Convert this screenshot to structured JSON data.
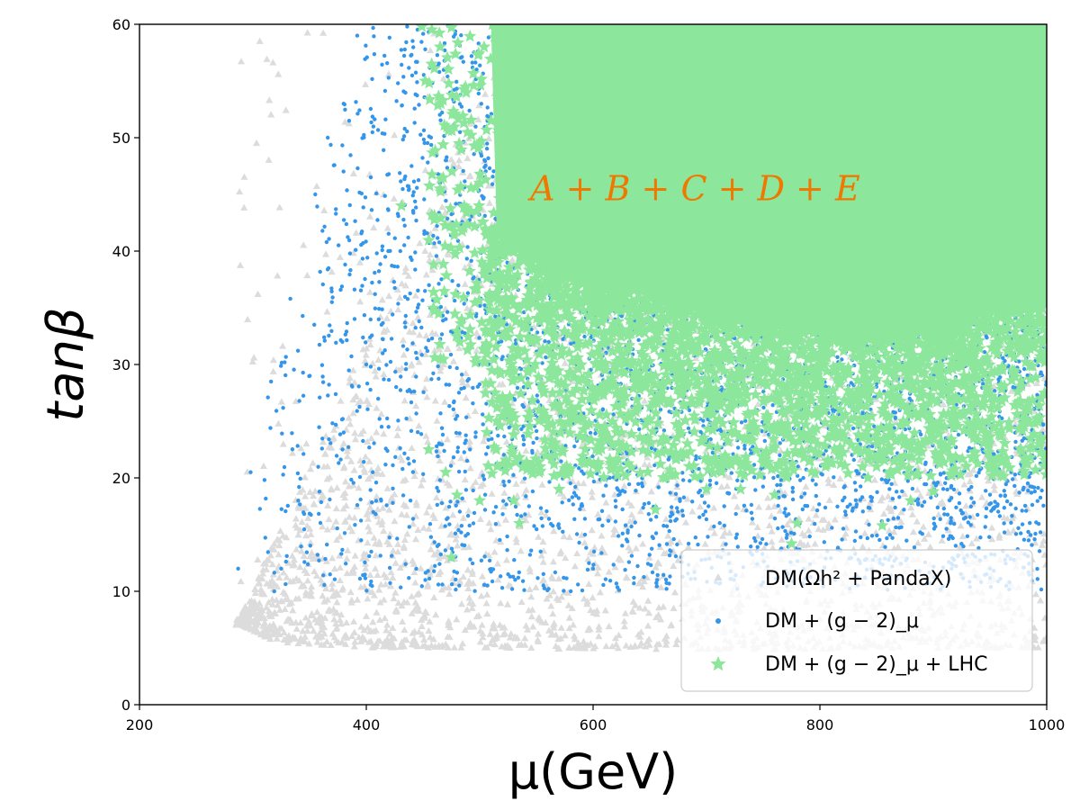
{
  "chart_data": {
    "type": "scatter",
    "xlabel": "μ(GeV)",
    "ylabel": "tanβ",
    "xlim": [
      200,
      1000
    ],
    "ylim": [
      0,
      60
    ],
    "xticks": [
      200,
      400,
      600,
      800,
      1000
    ],
    "yticks": [
      0,
      10,
      20,
      30,
      40,
      50,
      60
    ],
    "grid": false,
    "legend_position": "bottom-right",
    "annotation": {
      "text": "A + B + C + D + E",
      "x": 690,
      "y": 45.5,
      "color": "#f07800"
    },
    "series": [
      {
        "name": "DM(Ωh² + PandaX)",
        "marker": "triangle",
        "color": "#dcdcdc",
        "approx_region": {
          "x_range": [
            285,
            1000
          ],
          "y_range": [
            4.5,
            60
          ],
          "lower_envelope": [
            [
              290,
              7
            ],
            [
              320,
              5.5
            ],
            [
              400,
              5
            ],
            [
              500,
              5
            ],
            [
              700,
              4.8
            ],
            [
              1000,
              5
            ]
          ],
          "left_envelope": [
            [
              292,
              12
            ],
            [
              315,
              30
            ],
            [
              330,
              45
            ],
            [
              362,
              59
            ]
          ]
        },
        "sample_points": [
          [
            362,
            59.2
          ],
          [
            316,
            52
          ],
          [
            314,
            48
          ],
          [
            295,
            20.5
          ],
          [
            320,
            8
          ],
          [
            390,
            5.5
          ],
          [
            470,
            5.3
          ],
          [
            570,
            4.9
          ],
          [
            690,
            5.5
          ],
          [
            780,
            13.8
          ],
          [
            990,
            6
          ],
          [
            960,
            7
          ],
          [
            420,
            36
          ],
          [
            440,
            30
          ]
        ]
      },
      {
        "name": "DM + (g − 2)_μ",
        "marker": "dot",
        "color": "#3396ea",
        "approx_region": {
          "x_range": [
            285,
            1000
          ],
          "y_range": [
            8.5,
            60
          ],
          "lower_envelope": [
            [
              290,
              9
            ],
            [
              320,
              9
            ],
            [
              400,
              10
            ],
            [
              550,
              10
            ],
            [
              700,
              10
            ],
            [
              1000,
              10
            ]
          ],
          "left_envelope": [
            [
              287,
              12
            ],
            [
              300,
              20
            ],
            [
              315,
              28
            ],
            [
              335,
              36
            ],
            [
              355,
              45
            ],
            [
              380,
              52
            ],
            [
              392,
              59
            ]
          ]
        },
        "sample_points": [
          [
            287,
            12
          ],
          [
            298,
            20.5
          ],
          [
            316,
            28.5
          ],
          [
            333,
            35.8
          ],
          [
            355,
            45
          ],
          [
            366,
            50
          ],
          [
            380,
            53
          ],
          [
            392,
            59
          ],
          [
            436,
            59.8
          ],
          [
            325,
            12
          ],
          [
            340,
            18
          ],
          [
            380,
            24
          ],
          [
            400,
            30
          ],
          [
            430,
            40
          ],
          [
            470,
            48
          ],
          [
            600,
            12
          ],
          [
            800,
            11
          ],
          [
            950,
            12
          ]
        ]
      },
      {
        "name": "DM + (g − 2)_μ + LHC",
        "marker": "star",
        "color": "#8ce69b",
        "approx_region": {
          "x_range": [
            430,
            1000
          ],
          "y_range": [
            13,
            60
          ],
          "dense_fill": [
            [
              510,
              60
            ],
            [
              515,
              42
            ],
            [
              560,
              38
            ],
            [
              650,
              36
            ],
            [
              800,
              33
            ],
            [
              900,
              33
            ],
            [
              1000,
              36
            ],
            [
              1000,
              60
            ]
          ],
          "sparse_lower_envelope": [
            [
              445,
              22
            ],
            [
              500,
              17
            ],
            [
              600,
              18
            ],
            [
              700,
              19
            ],
            [
              850,
              19
            ],
            [
              1000,
              20
            ]
          ]
        },
        "sample_points": [
          [
            431,
            44
          ],
          [
            449,
            59.8
          ],
          [
            452,
            55
          ],
          [
            455,
            22.5
          ],
          [
            470,
            20.5
          ],
          [
            475,
            13
          ],
          [
            480,
            18.5
          ],
          [
            500,
            18
          ],
          [
            530,
            18
          ],
          [
            535,
            16
          ],
          [
            570,
            19
          ],
          [
            620,
            21.5
          ],
          [
            655,
            17.2
          ],
          [
            700,
            19
          ],
          [
            730,
            19
          ],
          [
            760,
            18.5
          ],
          [
            775,
            14.2
          ],
          [
            780,
            16
          ],
          [
            805,
            21
          ],
          [
            850,
            21
          ],
          [
            855,
            15.8
          ],
          [
            880,
            18
          ],
          [
            900,
            18.8
          ],
          [
            950,
            21
          ],
          [
            980,
            24.5
          ],
          [
            995,
            27
          ]
        ]
      }
    ]
  }
}
